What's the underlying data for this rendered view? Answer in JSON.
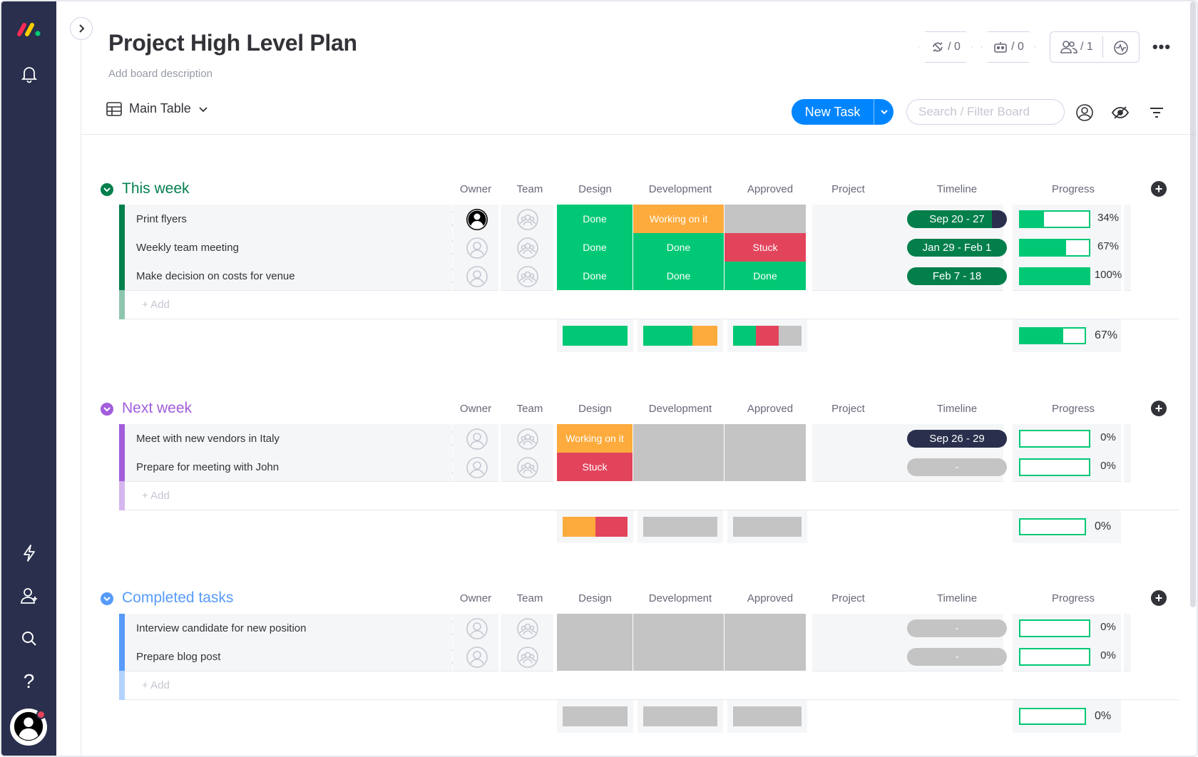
{
  "board": {
    "title": "Project High Level Plan",
    "description": "Add board description",
    "view": "Main Table",
    "counters": {
      "integrations": "/ 0",
      "automations": "/ 0",
      "members": "/ 1"
    },
    "new_task": "New Task",
    "search_placeholder": "Search / Filter Board"
  },
  "columns": [
    "Owner",
    "Team",
    "Design",
    "Development",
    "Approved",
    "Project",
    "Timeline",
    "Progress"
  ],
  "colors": {
    "done": "#00c875",
    "working": "#fdab3d",
    "stuck": "#e2445c",
    "empty": "#c4c4c4",
    "navy": "#292f4c",
    "dark_green": "#037f4c",
    "blue": "#0085ff"
  },
  "add_label": "+ Add",
  "groups": [
    {
      "name": "This week",
      "color": "#037f4c",
      "rows": [
        {
          "name": "Print flyers",
          "owner": "assigned",
          "design": "Done",
          "development": "Working on it",
          "approved": "",
          "timeline": "Sep 20 - 27",
          "progress": "34%",
          "progress_value": 0.34
        },
        {
          "name": "Weekly team meeting",
          "owner": "",
          "design": "Done",
          "development": "Done",
          "approved": "Stuck",
          "timeline": "Jan 29 - Feb 1",
          "progress": "67%",
          "progress_value": 0.67
        },
        {
          "name": "Make decision on costs for venue",
          "owner": "",
          "design": "Done",
          "development": "Done",
          "approved": "Done",
          "timeline": "Feb 7 - 18",
          "progress": "100%",
          "progress_value": 1.0
        }
      ],
      "summary_progress": "67%",
      "summary_progress_value": 0.67
    },
    {
      "name": "Next week",
      "color": "#a25ddc",
      "rows": [
        {
          "name": "Meet with new vendors in Italy",
          "owner": "",
          "design": "Working on it",
          "development": "",
          "approved": "",
          "timeline": "Sep 26 - 29",
          "progress": "0%",
          "progress_value": 0
        },
        {
          "name": "Prepare for meeting with John",
          "owner": "",
          "design": "Stuck",
          "development": "",
          "approved": "",
          "timeline": "-",
          "progress": "0%",
          "progress_value": 0
        }
      ],
      "summary_progress": "0%",
      "summary_progress_value": 0
    },
    {
      "name": "Completed tasks",
      "color": "#579bfc",
      "rows": [
        {
          "name": "Interview candidate for new position",
          "owner": "",
          "design": "",
          "development": "",
          "approved": "",
          "timeline": "-",
          "progress": "0%",
          "progress_value": 0
        },
        {
          "name": "Prepare blog post",
          "owner": "",
          "design": "",
          "development": "",
          "approved": "",
          "timeline": "-",
          "progress": "0%",
          "progress_value": 0
        }
      ],
      "summary_progress": "0%",
      "summary_progress_value": 0
    }
  ]
}
